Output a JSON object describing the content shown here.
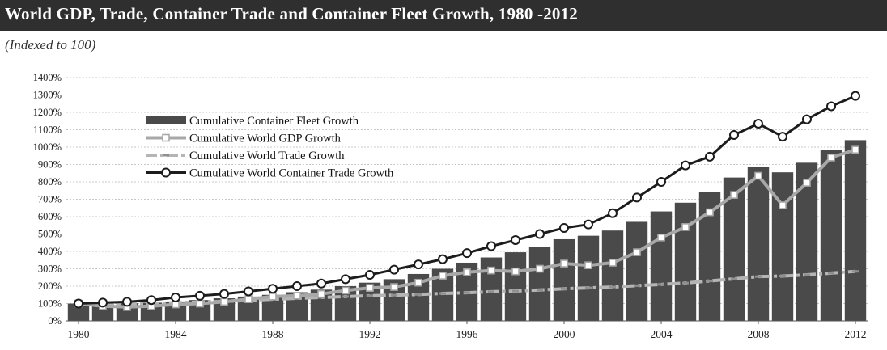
{
  "title": "World GDP, Trade, Container Trade and Container Fleet Growth, 1980 -2012",
  "subtitle": "(Indexed to 100)",
  "colors": {
    "title_bar": "#2f2f2f",
    "fleet_bars": "#4a4a4a",
    "gdp_line": "#a8a8a8",
    "trade_line": "#b5b5b5",
    "container_trade_line": "#1c1c1c",
    "grid": "#c8c8c8"
  },
  "chart_data": {
    "type": "bar",
    "x": [
      1980,
      1981,
      1982,
      1983,
      1984,
      1985,
      1986,
      1987,
      1988,
      1989,
      1990,
      1991,
      1992,
      1993,
      1994,
      1995,
      1996,
      1997,
      1998,
      1999,
      2000,
      2001,
      2002,
      2003,
      2004,
      2005,
      2006,
      2007,
      2008,
      2009,
      2010,
      2011,
      2012
    ],
    "x_tick_labels": [
      "1980",
      "1984",
      "1988",
      "1992",
      "1996",
      "2000",
      "2004",
      "2008",
      "2012"
    ],
    "y_tick_labels": [
      "0%",
      "100%",
      "200%",
      "300%",
      "400%",
      "500%",
      "600%",
      "700%",
      "800%",
      "900%",
      "1000%",
      "1100%",
      "1200%",
      "1300%",
      "1400%"
    ],
    "ylim": [
      0,
      1400
    ],
    "grid": true,
    "legend_position": "top-left",
    "series": [
      {
        "name": "Cumulative Container Fleet Growth",
        "type": "bar",
        "values": [
          100,
          100,
          102,
          105,
          112,
          120,
          130,
          140,
          150,
          165,
          180,
          200,
          220,
          240,
          270,
          300,
          335,
          365,
          395,
          425,
          470,
          490,
          520,
          570,
          630,
          680,
          740,
          825,
          885,
          855,
          910,
          985,
          1040
        ]
      },
      {
        "name": "Cumulative World GDP Growth",
        "type": "line",
        "marker": "square",
        "values": [
          100,
          85,
          80,
          85,
          95,
          100,
          110,
          125,
          140,
          145,
          155,
          175,
          190,
          195,
          220,
          260,
          280,
          290,
          285,
          300,
          330,
          320,
          335,
          395,
          480,
          540,
          625,
          725,
          835,
          665,
          795,
          940,
          985
        ]
      },
      {
        "name": "Cumulative World Trade Growth",
        "type": "line",
        "marker": "dash",
        "values": [
          100,
          95,
          95,
          100,
          105,
          108,
          112,
          118,
          125,
          130,
          135,
          140,
          145,
          148,
          152,
          158,
          162,
          168,
          172,
          178,
          185,
          190,
          195,
          203,
          210,
          218,
          230,
          242,
          255,
          258,
          265,
          275,
          285
        ]
      },
      {
        "name": "Cumulative World Container Trade Growth",
        "type": "line",
        "marker": "circle",
        "values": [
          100,
          105,
          110,
          120,
          135,
          145,
          155,
          170,
          185,
          200,
          215,
          240,
          265,
          295,
          325,
          355,
          390,
          430,
          465,
          500,
          535,
          555,
          620,
          710,
          800,
          895,
          945,
          1070,
          1135,
          1060,
          1160,
          1235,
          1295
        ]
      }
    ]
  }
}
